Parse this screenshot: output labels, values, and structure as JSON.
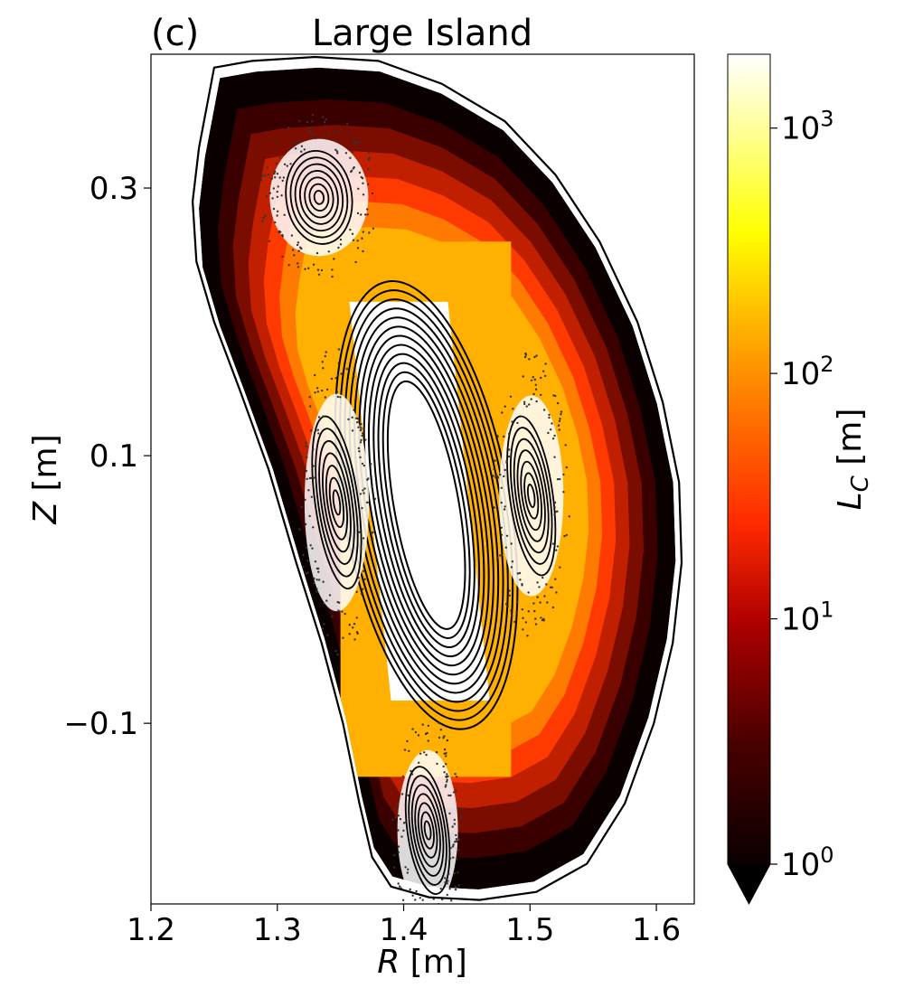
{
  "panel_label": "(c)",
  "title": "Large Island",
  "colors": {
    "boundary": "#000000",
    "poincare": "#000000",
    "cmap": [
      "#0a0000",
      "#3a0000",
      "#7a0c00",
      "#c02000",
      "#ff3a00",
      "#ff7a00",
      "#ffb000",
      "#ffe000",
      "#ffff40",
      "#ffffc0",
      "#ffffff"
    ]
  },
  "chart_data": {
    "type": "heatmap",
    "title": "Large Island",
    "xlabel_italic": "R",
    "xlabel_unit": " [m]",
    "ylabel_italic": "Z",
    "ylabel_unit": " [m]",
    "xlim": [
      1.2,
      1.63
    ],
    "ylim": [
      -0.235,
      0.4
    ],
    "xticks": [
      1.2,
      1.3,
      1.4,
      1.5,
      1.6
    ],
    "xtick_labels": [
      "1.2",
      "1.3",
      "1.4",
      "1.5",
      "1.6"
    ],
    "yticks": [
      -0.1,
      0.1,
      0.3
    ],
    "ytick_labels": [
      "−0.1",
      "0.1",
      "0.3"
    ],
    "colorbar": {
      "label_italic": "L",
      "label_sub": "C",
      "label_unit": " [m]",
      "scale": "log",
      "vmin": 1,
      "vmax": 2000,
      "extend": "min",
      "ticks": [
        1,
        10,
        100,
        1000
      ],
      "tick_base": "10",
      "tick_exps": [
        "0",
        "1",
        "2",
        "3"
      ]
    },
    "islands": [
      {
        "R": 1.333,
        "Z": 0.293,
        "rR": 0.026,
        "rZ": 0.035
      },
      {
        "R": 1.347,
        "Z": 0.065,
        "rR": 0.017,
        "rZ": 0.065
      },
      {
        "R": 1.501,
        "Z": 0.07,
        "rR": 0.017,
        "rZ": 0.06
      },
      {
        "R": 1.419,
        "Z": -0.18,
        "rR": 0.016,
        "rZ": 0.048
      }
    ],
    "core": {
      "R": 1.418,
      "Z": 0.063,
      "rR": 0.022,
      "rZ": 0.087
    }
  }
}
